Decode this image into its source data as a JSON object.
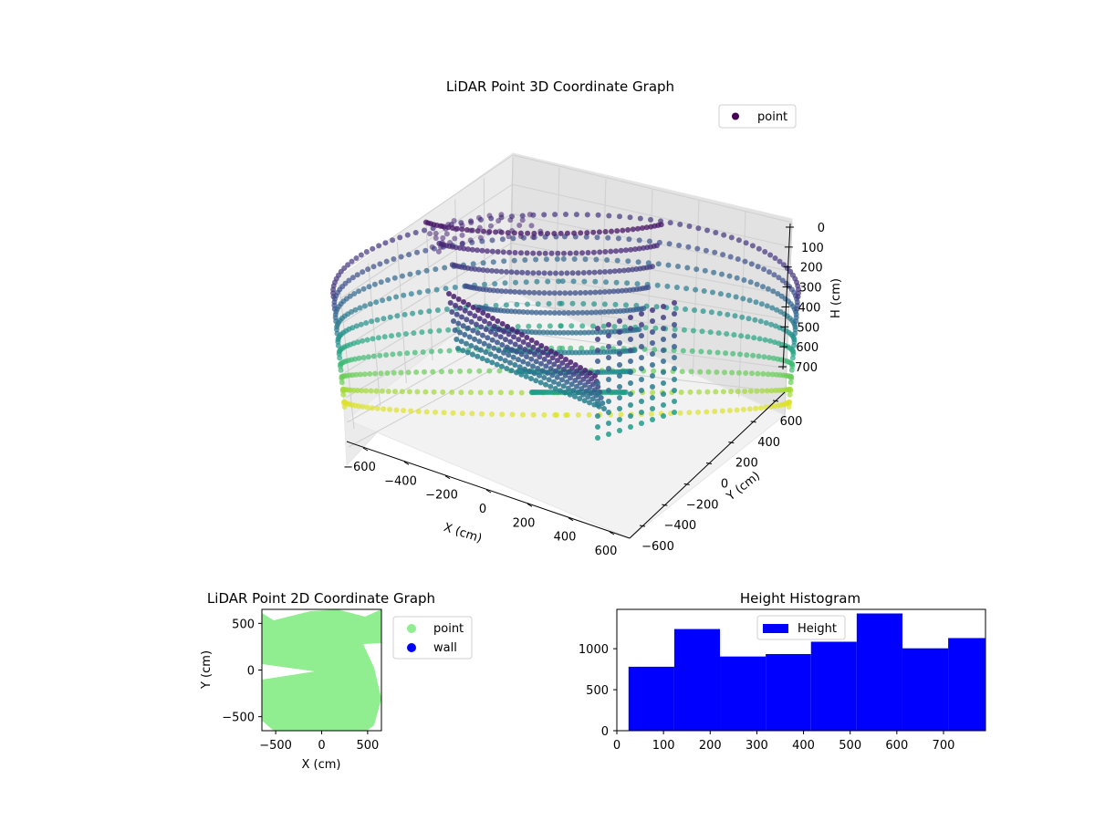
{
  "chart_data": [
    {
      "type": "scatter",
      "title": "LiDAR Point 3D Coordinate Graph",
      "xlabel": "X (cm)",
      "ylabel": "Y (cm)",
      "zlabel": "H (cm)",
      "xlim": [
        -700,
        700
      ],
      "ylim": [
        -700,
        700
      ],
      "zlim": [
        0,
        800
      ],
      "z_inverted": true,
      "xticks": [
        "−600",
        "−400",
        "−200",
        "0",
        "200",
        "400",
        "600"
      ],
      "yticks": [
        "−600",
        "−400",
        "−200",
        "0",
        "200",
        "400",
        "600"
      ],
      "zticks": [
        "0",
        "100",
        "200",
        "300",
        "400",
        "500",
        "600",
        "700"
      ],
      "legend": [
        {
          "name": "point",
          "color": "#440154"
        }
      ],
      "legend_position": "upper right",
      "colormap": "viridis",
      "grid": true,
      "series": [
        {
          "name": "point"
        }
      ]
    },
    {
      "type": "scatter",
      "title": "LiDAR Point 2D Coordinate Graph",
      "xlabel": "X (cm)",
      "ylabel": "Y (cm)",
      "xlim": [
        -650,
        650
      ],
      "ylim": [
        -650,
        650
      ],
      "xticks": [
        "−500",
        "0",
        "500"
      ],
      "yticks": [
        "−500",
        "0",
        "500"
      ],
      "legend": [
        {
          "name": "point",
          "color": "#90ee90"
        },
        {
          "name": "wall",
          "color": "#0000ff"
        }
      ],
      "legend_position": "outside right",
      "series": [
        {
          "name": "point",
          "color": "#90ee90"
        },
        {
          "name": "wall",
          "color": "#0000ff"
        }
      ]
    },
    {
      "type": "bar",
      "title": "Height Histogram",
      "xlim": [
        0,
        790
      ],
      "ylim": [
        0,
        1480
      ],
      "xticks": [
        "0",
        "100",
        "200",
        "300",
        "400",
        "500",
        "600",
        "700"
      ],
      "yticks": [
        "0",
        "500",
        "1000"
      ],
      "bin_edges": [
        25,
        123,
        221,
        319,
        416,
        514,
        612,
        710,
        790
      ],
      "values": [
        780,
        1240,
        905,
        935,
        1085,
        1430,
        1005,
        1130
      ],
      "color": "#0000ff",
      "legend": [
        {
          "name": "Height",
          "color": "#0000ff"
        }
      ],
      "legend_position": "upper center",
      "series": [
        {
          "name": "Height"
        }
      ]
    }
  ]
}
